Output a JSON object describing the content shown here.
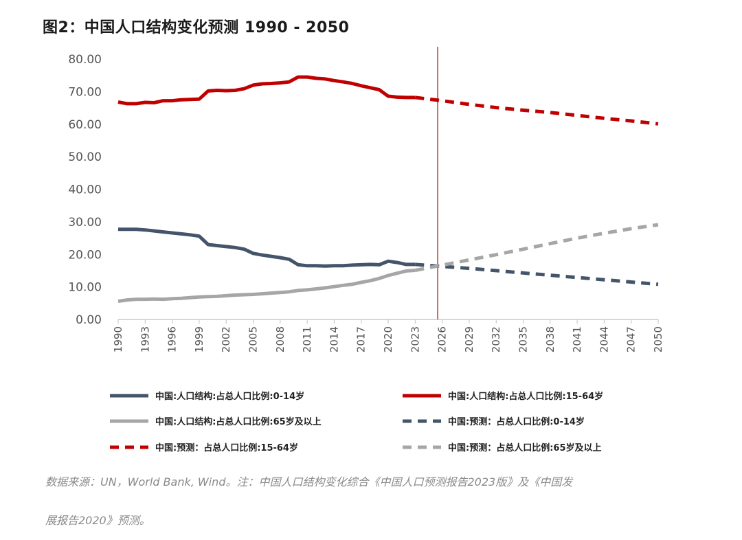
{
  "title": "图2：中国人口结构变化预测 1990 - 2050",
  "chart_data": {
    "type": "line",
    "ylim": [
      0,
      80
    ],
    "y_ticks": [
      "0.00",
      "10.00",
      "20.00",
      "30.00",
      "40.00",
      "50.00",
      "60.00",
      "70.00",
      "80.00"
    ],
    "x_range": [
      1990,
      2050
    ],
    "x_ticks": [
      "1990",
      "1993",
      "1996",
      "1999",
      "2002",
      "2005",
      "2008",
      "2011",
      "2014",
      "2017",
      "2020",
      "2023",
      "2026",
      "2029",
      "2032",
      "2035",
      "2038",
      "2041",
      "2044",
      "2047",
      "2050"
    ],
    "reference_line_x": 2025.5,
    "series": [
      {
        "name": "中国:人口结构:占总人口比例:0-14岁",
        "color": "#44546a",
        "style": "solid",
        "x": [
          1990,
          1991,
          1992,
          1993,
          1994,
          1995,
          1996,
          1997,
          1998,
          1999,
          2000,
          2001,
          2002,
          2003,
          2004,
          2005,
          2006,
          2007,
          2008,
          2009,
          2010,
          2011,
          2012,
          2013,
          2014,
          2015,
          2016,
          2017,
          2018,
          2019,
          2020,
          2021,
          2022,
          2023
        ],
        "y": [
          27.7,
          27.7,
          27.7,
          27.5,
          27.2,
          26.9,
          26.6,
          26.3,
          26.0,
          25.6,
          23.0,
          22.7,
          22.4,
          22.1,
          21.6,
          20.3,
          19.8,
          19.4,
          19.0,
          18.5,
          16.8,
          16.5,
          16.5,
          16.4,
          16.5,
          16.5,
          16.7,
          16.8,
          16.9,
          16.8,
          17.9,
          17.5,
          16.9,
          16.9
        ]
      },
      {
        "name": "中国:人口结构:占总人口比例:15-64岁",
        "color": "#c00000",
        "style": "solid",
        "x": [
          1990,
          1991,
          1992,
          1993,
          1994,
          1995,
          1996,
          1997,
          1998,
          1999,
          2000,
          2001,
          2002,
          2003,
          2004,
          2005,
          2006,
          2007,
          2008,
          2009,
          2010,
          2011,
          2012,
          2013,
          2014,
          2015,
          2016,
          2017,
          2018,
          2019,
          2020,
          2021,
          2022,
          2023
        ],
        "y": [
          66.8,
          66.3,
          66.3,
          66.7,
          66.6,
          67.2,
          67.2,
          67.5,
          67.6,
          67.7,
          70.2,
          70.4,
          70.3,
          70.4,
          70.9,
          72.0,
          72.4,
          72.5,
          72.7,
          73.0,
          74.5,
          74.5,
          74.1,
          73.9,
          73.4,
          73.0,
          72.5,
          71.8,
          71.2,
          70.6,
          68.6,
          68.3,
          68.2,
          68.2
        ]
      },
      {
        "name": "中国:人口结构:占总人口比例:65岁及以上",
        "color": "#a6a6a6",
        "style": "solid",
        "x": [
          1990,
          1991,
          1992,
          1993,
          1994,
          1995,
          1996,
          1997,
          1998,
          1999,
          2000,
          2001,
          2002,
          2003,
          2004,
          2005,
          2006,
          2007,
          2008,
          2009,
          2010,
          2011,
          2012,
          2013,
          2014,
          2015,
          2016,
          2017,
          2018,
          2019,
          2020,
          2021,
          2022,
          2023
        ],
        "y": [
          5.6,
          6.0,
          6.2,
          6.2,
          6.3,
          6.2,
          6.4,
          6.5,
          6.7,
          6.9,
          7.0,
          7.1,
          7.3,
          7.5,
          7.6,
          7.7,
          7.9,
          8.1,
          8.3,
          8.5,
          8.9,
          9.1,
          9.4,
          9.7,
          10.1,
          10.5,
          10.8,
          11.4,
          11.9,
          12.6,
          13.5,
          14.2,
          14.9,
          15.1
        ]
      },
      {
        "name": "中国:预测：占总人口比例:0-14岁",
        "color": "#44546a",
        "style": "dashed",
        "x": [
          2023,
          2026,
          2029,
          2032,
          2035,
          2038,
          2041,
          2044,
          2047,
          2050
        ],
        "y": [
          16.9,
          16.3,
          15.7,
          15.0,
          14.3,
          13.6,
          12.9,
          12.2,
          11.5,
          10.8
        ]
      },
      {
        "name": "中国:预测：占总人口比例:15-64岁",
        "color": "#c00000",
        "style": "dashed",
        "x": [
          2023,
          2026,
          2029,
          2032,
          2035,
          2038,
          2041,
          2044,
          2047,
          2050
        ],
        "y": [
          68.2,
          67.2,
          66.1,
          65.1,
          64.3,
          63.6,
          62.7,
          61.8,
          61.0,
          60.1
        ]
      },
      {
        "name": "中国:预测：占总人口比例:65岁及以上",
        "color": "#a6a6a6",
        "style": "dashed",
        "x": [
          2023,
          2026,
          2029,
          2032,
          2035,
          2038,
          2041,
          2044,
          2047,
          2050
        ],
        "y": [
          15.1,
          16.7,
          18.3,
          19.9,
          21.6,
          23.3,
          25.0,
          26.5,
          27.9,
          29.1
        ]
      }
    ],
    "legend_placement": "bottom"
  },
  "legend": [
    {
      "label": "中国:人口结构:占总人口比例:0-14岁",
      "color": "#44546a",
      "style": "solid"
    },
    {
      "label": "中国:人口结构:占总人口比例:15-64岁",
      "color": "#c00000",
      "style": "solid"
    },
    {
      "label": "中国:人口结构:占总人口比例:65岁及以上",
      "color": "#a6a6a6",
      "style": "solid"
    },
    {
      "label": "中国:预测：占总人口比例:0-14岁",
      "color": "#44546a",
      "style": "dashed"
    },
    {
      "label": "中国:预测：占总人口比例:15-64岁",
      "color": "#c00000",
      "style": "dashed"
    },
    {
      "label": "中国:预测：占总人口比例:65岁及以上",
      "color": "#a6a6a6",
      "style": "dashed"
    }
  ],
  "source_note_line1": "数据来源：UN，World Bank, Wind。注：中国人口结构变化综合《中国人口预测报告2023版》及《中国发",
  "source_note_line2": "展报告2020》预测。"
}
